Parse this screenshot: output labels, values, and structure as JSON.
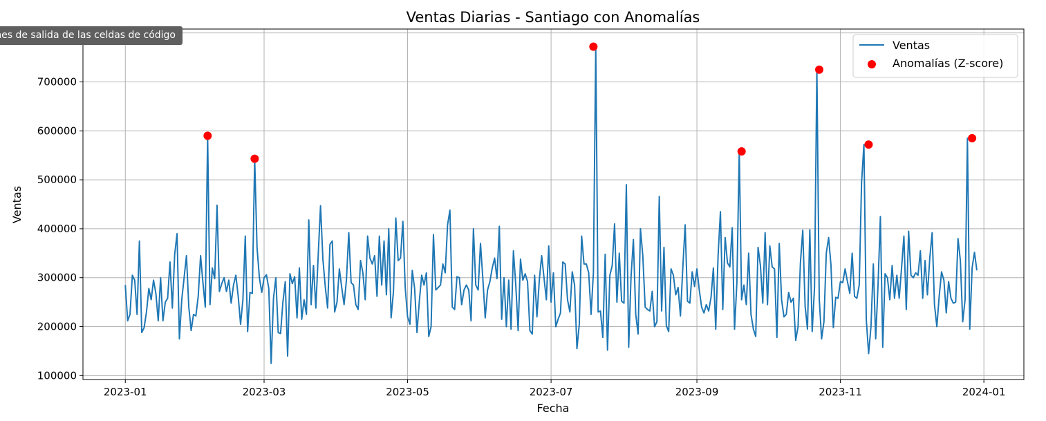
{
  "tooltip": {
    "text": "Activar o desactivar opciones de salida de las celdas de código"
  },
  "chart_data": {
    "type": "line",
    "title": "Ventas Diarias - Santiago con Anomalías",
    "xlabel": "Fecha",
    "ylabel": "Ventas",
    "xlim": [
      "2022-12-14",
      "2024-01-18"
    ],
    "ylim": [
      92000,
      808000
    ],
    "grid": true,
    "legend": "top-right",
    "x_ticks": [
      "2023-01-01",
      "2023-03-01",
      "2023-05-01",
      "2023-07-01",
      "2023-09-01",
      "2023-11-01",
      "2024-01-01"
    ],
    "x_tick_labels": [
      "2023-01",
      "2023-03",
      "2023-05",
      "2023-07",
      "2023-09",
      "2023-11",
      "2024-01"
    ],
    "y_ticks": [
      100000,
      200000,
      300000,
      400000,
      500000,
      600000,
      700000,
      800000
    ],
    "y_tick_labels": [
      "100000",
      "200000",
      "300000",
      "400000",
      "500000",
      "600000",
      "700000",
      "800000"
    ],
    "start_date": "2023-01-01",
    "series": [
      {
        "name": "Ventas",
        "color": "#1f77b4",
        "values": [
          285000,
          212000,
          225000,
          305000,
          295000,
          225000,
          375000,
          188000,
          198000,
          230000,
          278000,
          255000,
          295000,
          268000,
          212000,
          300000,
          212000,
          250000,
          258000,
          332000,
          238000,
          348000,
          390000,
          175000,
          255000,
          300000,
          345000,
          240000,
          192000,
          225000,
          222000,
          262000,
          345000,
          290000,
          240000,
          590000,
          245000,
          320000,
          298000,
          448000,
          272000,
          288000,
          300000,
          272000,
          295000,
          248000,
          285000,
          305000,
          262000,
          205000,
          255000,
          385000,
          190000,
          270000,
          268000,
          543000,
          362000,
          300000,
          270000,
          300000,
          306000,
          278000,
          125000,
          258000,
          300000,
          188000,
          186000,
          250000,
          292000,
          140000,
          308000,
          288000,
          302000,
          218000,
          320000,
          215000,
          255000,
          225000,
          418000,
          245000,
          325000,
          238000,
          345000,
          447000,
          338000,
          282000,
          238000,
          368000,
          375000,
          230000,
          250000,
          318000,
          280000,
          245000,
          295000,
          392000,
          290000,
          285000,
          245000,
          235000,
          335000,
          310000,
          255000,
          385000,
          340000,
          328000,
          345000,
          262000,
          385000,
          285000,
          375000,
          265000,
          400000,
          218000,
          272000,
          422000,
          335000,
          340000,
          415000,
          280000,
          220000,
          205000,
          315000,
          278000,
          188000,
          252000,
          305000,
          285000,
          310000,
          180000,
          200000,
          388000,
          275000,
          280000,
          285000,
          328000,
          310000,
          408000,
          438000,
          240000,
          235000,
          302000,
          300000,
          245000,
          275000,
          285000,
          275000,
          212000,
          400000,
          285000,
          275000,
          370000,
          298000,
          218000,
          275000,
          292000,
          320000,
          340000,
          298000,
          405000,
          215000,
          300000,
          200000,
          295000,
          195000,
          355000,
          285000,
          192000,
          338000,
          295000,
          308000,
          292000,
          192000,
          185000,
          305000,
          220000,
          295000,
          345000,
          300000,
          255000,
          365000,
          250000,
          310000,
          200000,
          215000,
          228000,
          332000,
          328000,
          255000,
          230000,
          312000,
          285000,
          155000,
          205000,
          385000,
          328000,
          328000,
          310000,
          225000,
          310000,
          772000,
          230000,
          232000,
          178000,
          348000,
          152000,
          305000,
          325000,
          410000,
          250000,
          350000,
          252000,
          248000,
          490000,
          158000,
          302000,
          378000,
          225000,
          185000,
          400000,
          345000,
          240000,
          235000,
          232000,
          272000,
          200000,
          210000,
          466000,
          232000,
          362000,
          202000,
          190000,
          318000,
          305000,
          265000,
          280000,
          222000,
          320000,
          408000,
          252000,
          248000,
          312000,
          282000,
          318000,
          275000,
          240000,
          228000,
          245000,
          232000,
          260000,
          320000,
          195000,
          345000,
          435000,
          235000,
          382000,
          330000,
          322000,
          402000,
          195000,
          290000,
          558000,
          255000,
          285000,
          245000,
          350000,
          225000,
          195000,
          180000,
          362000,
          325000,
          248000,
          392000,
          245000,
          365000,
          322000,
          318000,
          178000,
          370000,
          255000,
          220000,
          225000,
          270000,
          250000,
          258000,
          172000,
          200000,
          330000,
          397000,
          242000,
          195000,
          398000,
          190000,
          280000,
          725000,
          258000,
          175000,
          210000,
          350000,
          382000,
          325000,
          198000,
          260000,
          258000,
          292000,
          290000,
          318000,
          292000,
          268000,
          350000,
          262000,
          258000,
          285000,
          495000,
          572000,
          215000,
          145000,
          200000,
          328000,
          175000,
          285000,
          425000,
          158000,
          308000,
          300000,
          255000,
          325000,
          258000,
          305000,
          258000,
          320000,
          385000,
          235000,
          395000,
          305000,
          300000,
          310000,
          305000,
          355000,
          258000,
          335000,
          265000,
          340000,
          392000,
          245000,
          200000,
          262000,
          312000,
          295000,
          228000,
          292000,
          258000,
          248000,
          250000,
          380000,
          335000,
          210000,
          255000,
          585000,
          195000,
          320000,
          352000,
          315000
        ]
      },
      {
        "name": "Anomalías (Z-score)",
        "type": "scatter",
        "color": "#ff0000",
        "points": [
          {
            "x": "2023-02-05",
            "y": 590000
          },
          {
            "x": "2023-02-25",
            "y": 543000
          },
          {
            "x": "2023-07-19",
            "y": 772000
          },
          {
            "x": "2023-09-20",
            "y": 558000
          },
          {
            "x": "2023-10-23",
            "y": 725000
          },
          {
            "x": "2023-11-13",
            "y": 572000
          },
          {
            "x": "2023-12-27",
            "y": 585000
          }
        ]
      }
    ]
  }
}
